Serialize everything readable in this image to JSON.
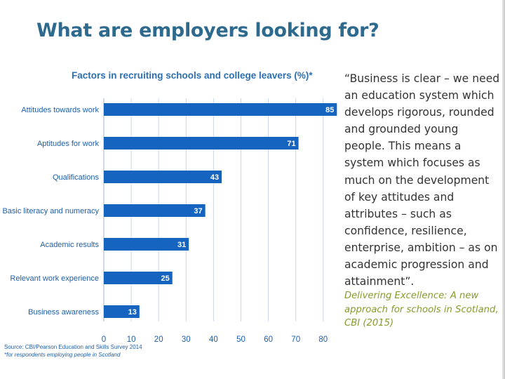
{
  "slide": {
    "title": "What are employers looking for?",
    "quote": "“Business is clear – we need an education system which develops rigorous, rounded and grounded young people. This means a system which focuses as much on the development of key attitudes and attributes – such as confidence, resilience, enterprise, ambition – as on academic progression and attainment”.",
    "citation": "Delivering Excellence: A new approach for schools in Scotland, CBI (2015)"
  },
  "chart_data": {
    "type": "bar",
    "orientation": "horizontal",
    "title": "Factors in recruiting schools and college leavers (%)*",
    "categories": [
      "Attitudes towards work",
      "Aptitudes for work",
      "Qualifications",
      "Basic literacy and numeracy",
      "Academic results",
      "Relevant work experience",
      "Business awareness"
    ],
    "values": [
      85,
      71,
      43,
      37,
      31,
      25,
      13
    ],
    "xlim": [
      0,
      80
    ],
    "xticks": [
      0,
      10,
      20,
      30,
      40,
      50,
      60,
      70,
      80
    ],
    "xlabel": "",
    "ylabel": "",
    "grid": true,
    "bar_color": "#1565c0",
    "grid_color": "#c9d6e8",
    "source": "Source: CBI/Pearson Education and Skills Survey 2014",
    "footnote": "*for respondents employing people in Scotland"
  }
}
